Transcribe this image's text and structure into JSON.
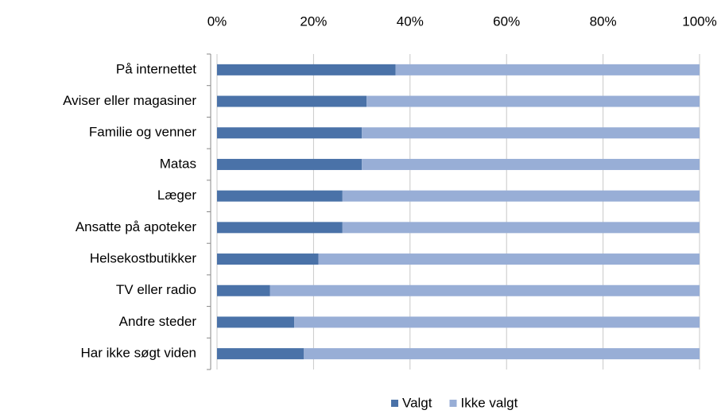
{
  "chart_data": {
    "type": "stacked-bar-horizontal",
    "categories": [
      "På internettet",
      "Aviser eller magasiner",
      "Familie og venner",
      "Matas",
      "Læger",
      "Ansatte på apoteker",
      "Helsekostbutikker",
      "TV eller radio",
      "Andre steder",
      "Har ikke søgt viden"
    ],
    "series": [
      {
        "name": "Valgt",
        "color": "#4a72a8",
        "values": [
          37,
          31,
          30,
          30,
          26,
          26,
          21,
          11,
          16,
          18
        ]
      },
      {
        "name": "Ikke valgt",
        "color": "#98aed6",
        "values": [
          63,
          69,
          70,
          70,
          74,
          74,
          79,
          89,
          84,
          82
        ]
      }
    ],
    "xlim": [
      0,
      100
    ],
    "xticks": [
      {
        "value": 0,
        "label": "0%"
      },
      {
        "value": 20,
        "label": "20%"
      },
      {
        "value": 40,
        "label": "40%"
      },
      {
        "value": 60,
        "label": "60%"
      },
      {
        "value": 80,
        "label": "80%"
      },
      {
        "value": 100,
        "label": "100%"
      }
    ],
    "grid": true,
    "legend": "bottom"
  }
}
